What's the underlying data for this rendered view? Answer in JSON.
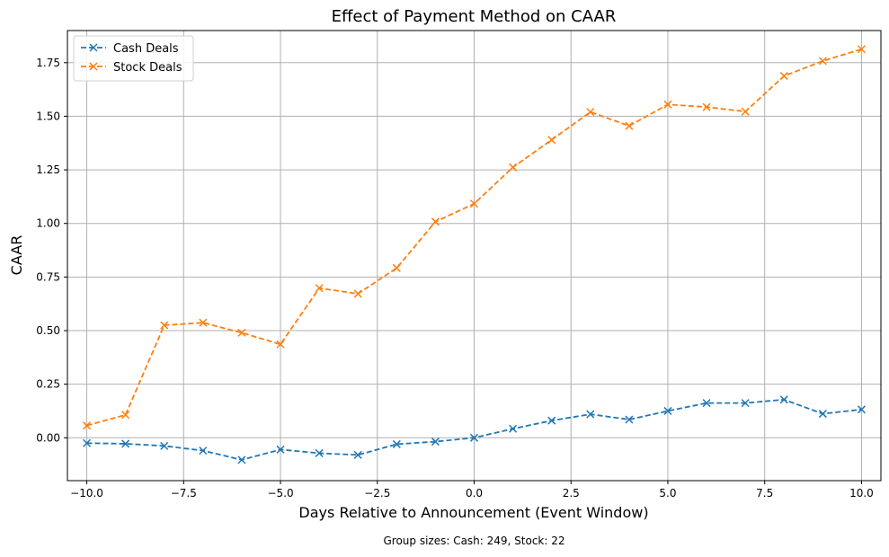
{
  "chart_data": {
    "type": "line",
    "title": "Effect of Payment Method on CAAR",
    "xlabel": "Days Relative to Announcement (Event Window)",
    "ylabel": "CAAR",
    "x": [
      -10,
      -9,
      -8,
      -7,
      -6,
      -5,
      -4,
      -3,
      -2,
      -1,
      0,
      1,
      2,
      3,
      4,
      5,
      6,
      7,
      8,
      9,
      10
    ],
    "series": [
      {
        "name": "Cash Deals",
        "color": "#1f77b4",
        "marker": "x",
        "linestyle": "dashed",
        "values": [
          -0.025,
          -0.028,
          -0.038,
          -0.06,
          -0.103,
          -0.055,
          -0.072,
          -0.08,
          -0.03,
          -0.018,
          0.0,
          0.042,
          0.08,
          0.11,
          0.085,
          0.125,
          0.162,
          0.162,
          0.178,
          0.112,
          0.132
        ]
      },
      {
        "name": "Stock Deals",
        "color": "#ff7f0e",
        "marker": "x",
        "linestyle": "dashed",
        "values": [
          0.057,
          0.107,
          0.525,
          0.537,
          0.49,
          0.436,
          0.698,
          0.672,
          0.792,
          1.008,
          1.092,
          1.262,
          1.39,
          1.52,
          1.455,
          1.555,
          1.543,
          1.522,
          1.688,
          1.758,
          1.813
        ]
      }
    ],
    "xlim": [
      -10.5,
      10.5
    ],
    "ylim": [
      -0.2,
      1.9
    ],
    "xticks": [
      -10.0,
      -7.5,
      -5.0,
      -2.5,
      0.0,
      2.5,
      5.0,
      7.5,
      10.0
    ],
    "xtick_labels": [
      "−10.0",
      "−7.5",
      "−5.0",
      "−2.5",
      "0.0",
      "2.5",
      "5.0",
      "7.5",
      "10.0"
    ],
    "yticks": [
      0.0,
      0.25,
      0.5,
      0.75,
      1.0,
      1.25,
      1.5,
      1.75
    ],
    "ytick_labels": [
      "0.00",
      "0.25",
      "0.50",
      "0.75",
      "1.00",
      "1.25",
      "1.50",
      "1.75"
    ],
    "grid": true,
    "legend_position": "top-left",
    "footnote": "Group sizes: Cash: 249, Stock: 22"
  }
}
